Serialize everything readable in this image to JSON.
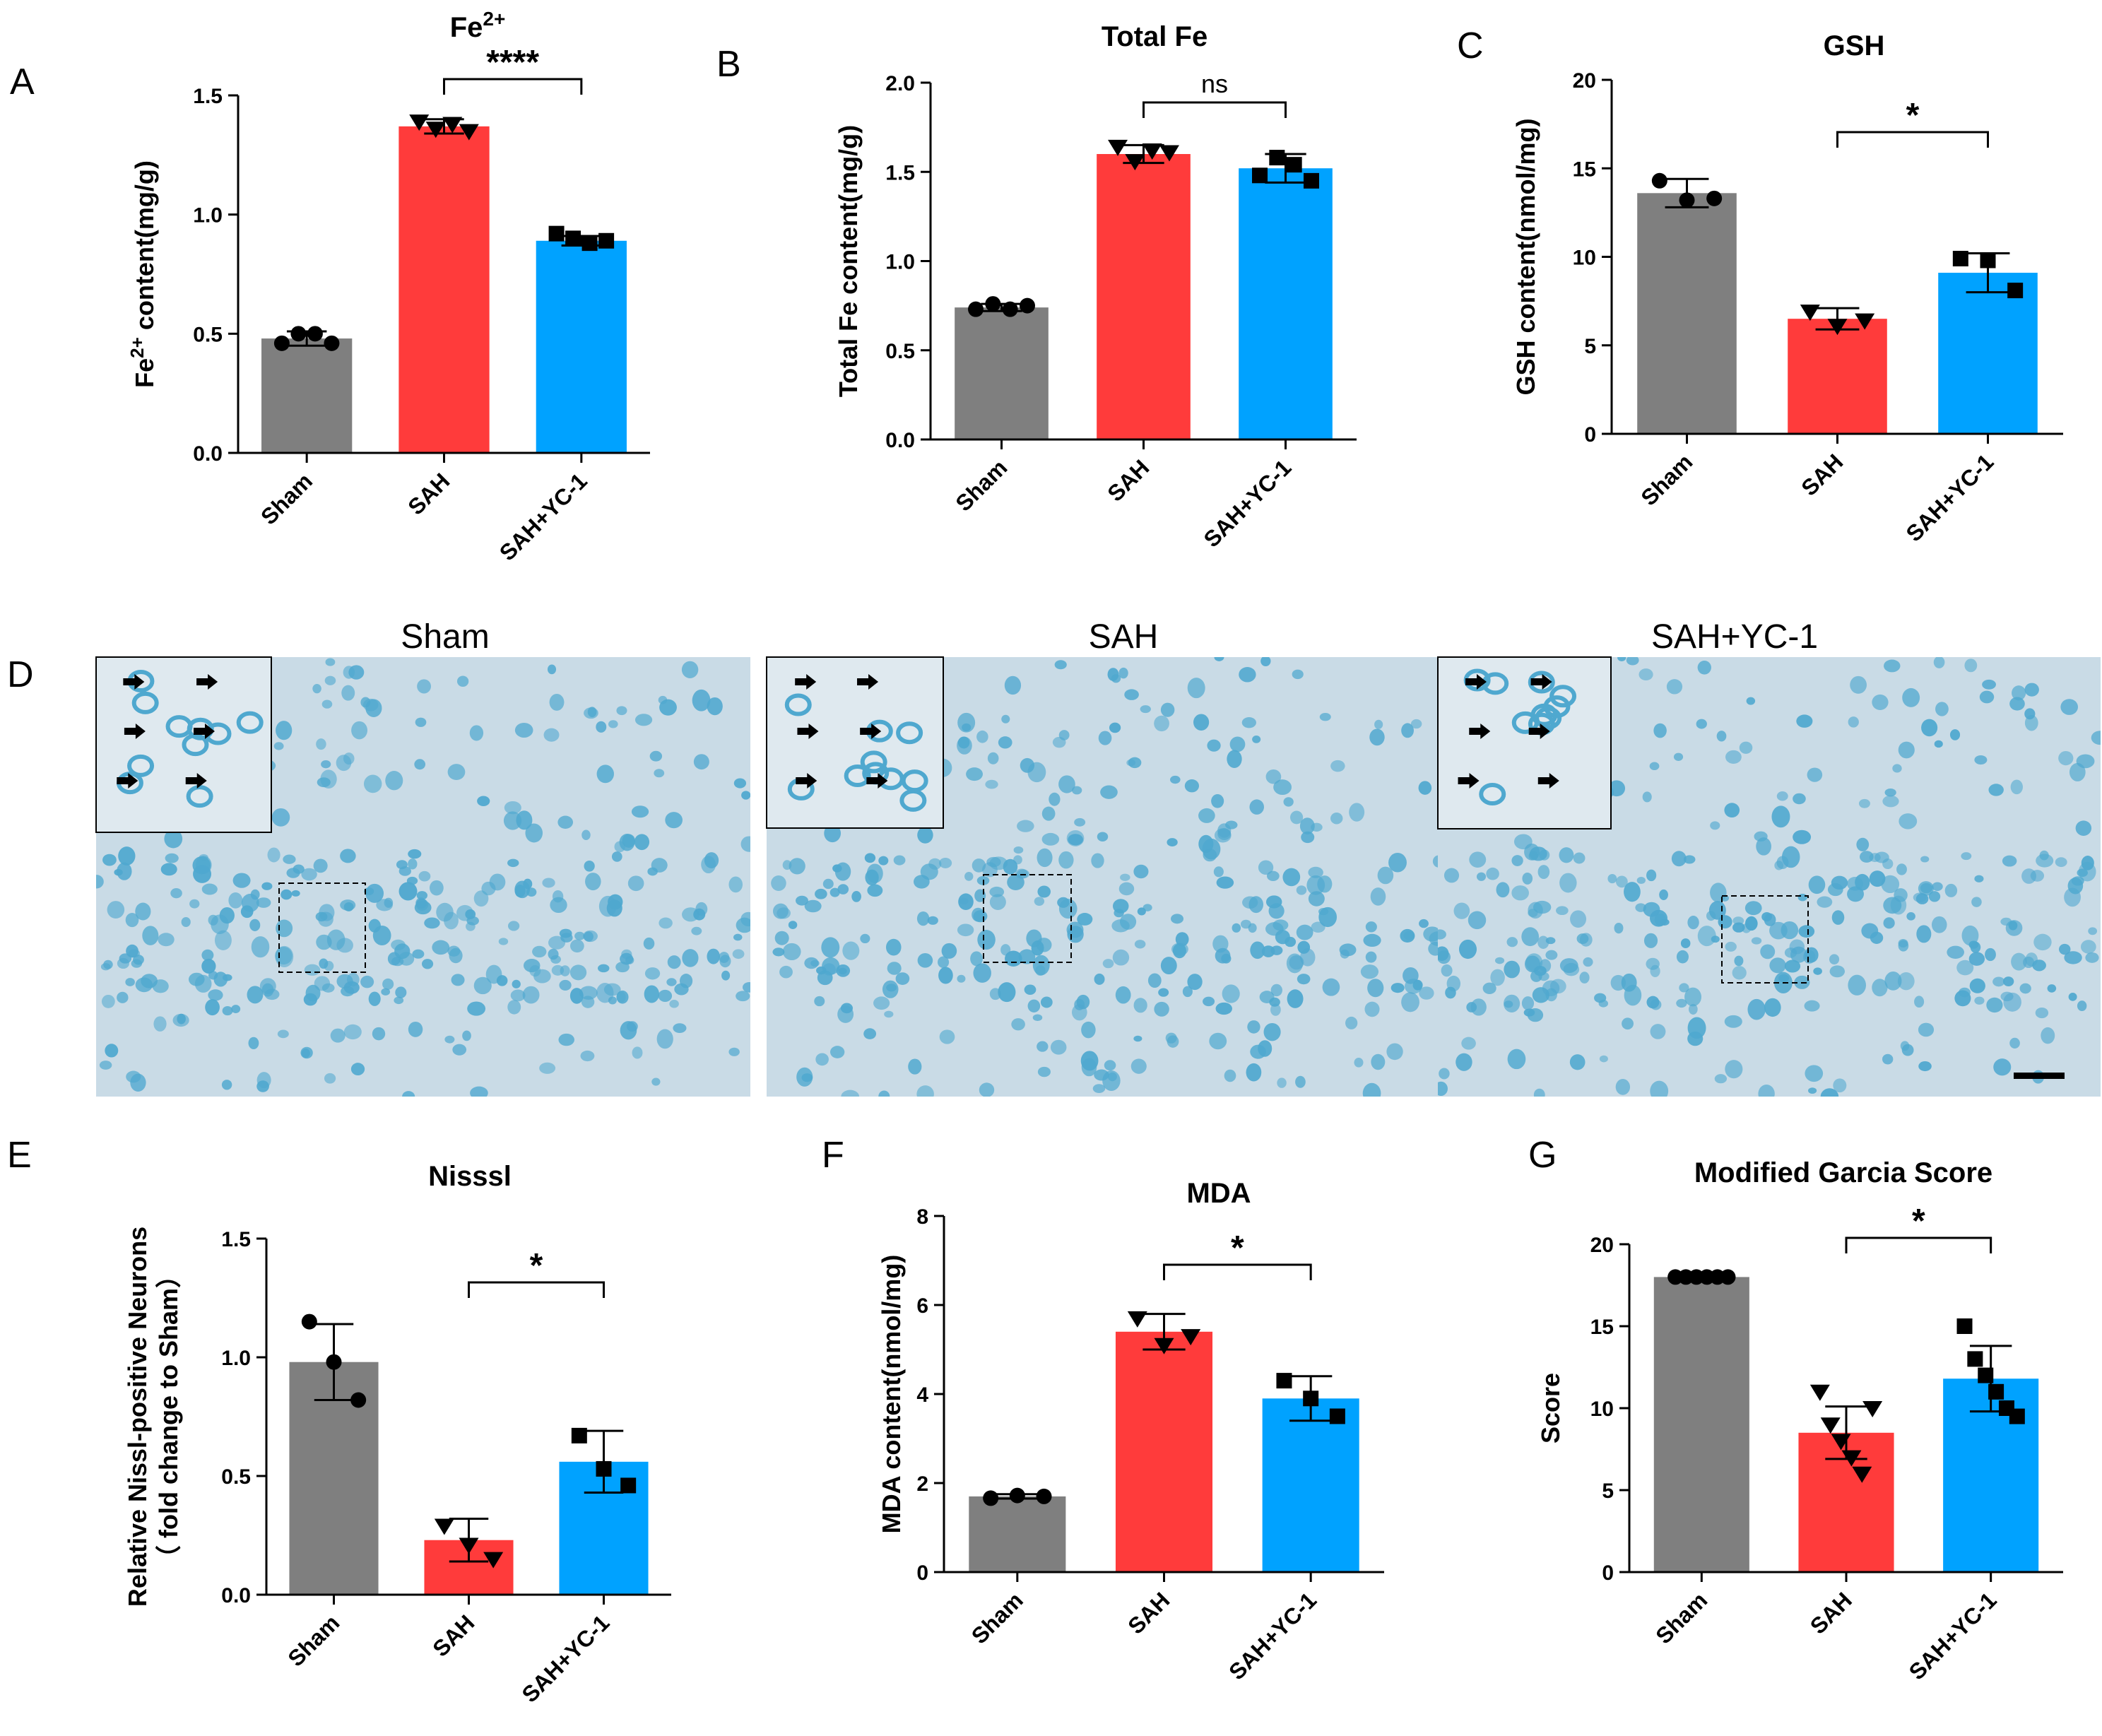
{
  "figure": {
    "panel_labels": [
      "A",
      "B",
      "C",
      "D",
      "E",
      "F",
      "G"
    ],
    "micrographs": {
      "titles": [
        "Sham",
        "SAH",
        "SAH+YC-1"
      ],
      "stain_color": "#4fa8cf",
      "background_color": "#c9dbe6"
    },
    "colors": {
      "Sham": "#7f7f7f",
      "SAH": "#ff3b3b",
      "SAH+YC-1": "#00a2ff"
    }
  },
  "chart_data": [
    {
      "id": "A",
      "type": "bar",
      "title": "Fe2+",
      "title_main": "Fe",
      "title_sup": "2+",
      "ylabel": "Fe2+ content(mg/g)",
      "ylabel_pre": "Fe",
      "ylabel_sup": "2+",
      "ylabel_post": " content(mg/g)",
      "categories": [
        "Sham",
        "SAH",
        "SAH+YC-1"
      ],
      "values": [
        0.48,
        1.37,
        0.89
      ],
      "sd": [
        0.03,
        0.03,
        0.02
      ],
      "points": [
        [
          0.46,
          0.5,
          0.5,
          0.46
        ],
        [
          1.39,
          1.36,
          1.38,
          1.35
        ],
        [
          0.92,
          0.9,
          0.88,
          0.89
        ]
      ],
      "markers": [
        "circle",
        "triangle",
        "square"
      ],
      "ylim": [
        0,
        1.5
      ],
      "yticks": [
        "0.0",
        "0.5",
        "1.0",
        "1.5"
      ],
      "significance": {
        "from": "SAH",
        "to": "SAH+YC-1",
        "label": "****"
      }
    },
    {
      "id": "B",
      "type": "bar",
      "title": "Total Fe",
      "ylabel": "Total Fe content(mg/g)",
      "categories": [
        "Sham",
        "SAH",
        "SAH+YC-1"
      ],
      "values": [
        0.74,
        1.6,
        1.52
      ],
      "sd": [
        0.02,
        0.05,
        0.08
      ],
      "points": [
        [
          0.73,
          0.76,
          0.73,
          0.75
        ],
        [
          1.64,
          1.56,
          1.62,
          1.61
        ],
        [
          1.48,
          1.58,
          1.54,
          1.45
        ]
      ],
      "markers": [
        "circle",
        "triangle",
        "square"
      ],
      "ylim": [
        0,
        2.0
      ],
      "yticks": [
        "0.0",
        "0.5",
        "1.0",
        "1.5",
        "2.0"
      ],
      "significance": {
        "from": "SAH",
        "to": "SAH+YC-1",
        "label": "ns"
      }
    },
    {
      "id": "C",
      "type": "bar",
      "title": "GSH",
      "ylabel": "GSH content(nmol/mg)",
      "categories": [
        "Sham",
        "SAH",
        "SAH+YC-1"
      ],
      "values": [
        13.6,
        6.5,
        9.1
      ],
      "sd": [
        0.8,
        0.6,
        1.1
      ],
      "points": [
        [
          14.3,
          13.2,
          13.3
        ],
        [
          6.9,
          6.1,
          6.4
        ],
        [
          9.9,
          9.8,
          8.1
        ]
      ],
      "markers": [
        "circle",
        "triangle",
        "square"
      ],
      "ylim": [
        0,
        20
      ],
      "yticks": [
        "0",
        "5",
        "10",
        "15",
        "20"
      ],
      "significance": {
        "from": "SAH",
        "to": "SAH+YC-1",
        "label": "*"
      }
    },
    {
      "id": "E",
      "type": "bar",
      "title": "Nisssl",
      "ylabel_lines": [
        "Relative Nissl-positive Neurons",
        "（ fold change to Sham）"
      ],
      "categories": [
        "Sham",
        "SAH",
        "SAH+YC-1"
      ],
      "values": [
        0.98,
        0.23,
        0.56
      ],
      "sd": [
        0.16,
        0.09,
        0.13
      ],
      "points": [
        [
          1.15,
          0.98,
          0.82
        ],
        [
          0.29,
          0.21,
          0.15
        ],
        [
          0.67,
          0.53,
          0.46
        ]
      ],
      "markers": [
        "circle",
        "triangle",
        "square"
      ],
      "ylim": [
        0,
        1.5
      ],
      "yticks": [
        "0.0",
        "0.5",
        "1.0",
        "1.5"
      ],
      "significance": {
        "from": "SAH",
        "to": "SAH+YC-1",
        "label": "*"
      }
    },
    {
      "id": "F",
      "type": "bar",
      "title": "MDA",
      "ylabel": "MDA content(nmol/mg)",
      "categories": [
        "Sham",
        "SAH",
        "SAH+YC-1"
      ],
      "values": [
        1.7,
        5.4,
        3.9
      ],
      "sd": [
        0.05,
        0.4,
        0.5
      ],
      "points": [
        [
          1.66,
          1.72,
          1.7
        ],
        [
          5.7,
          5.1,
          5.3
        ],
        [
          4.3,
          3.9,
          3.5
        ]
      ],
      "markers": [
        "circle",
        "triangle",
        "square"
      ],
      "ylim": [
        0,
        8
      ],
      "yticks": [
        "0",
        "2",
        "4",
        "6",
        "8"
      ],
      "significance": {
        "from": "SAH",
        "to": "SAH+YC-1",
        "label": "*"
      }
    },
    {
      "id": "G",
      "type": "bar",
      "title": "Modified Garcia Score",
      "ylabel": "Score",
      "categories": [
        "Sham",
        "SAH",
        "SAH+YC-1"
      ],
      "values": [
        18.0,
        8.5,
        11.8
      ],
      "sd": [
        0.0,
        1.6,
        2.0
      ],
      "points": [
        [
          18,
          18,
          18,
          18,
          18,
          18
        ],
        [
          11,
          9,
          8,
          7,
          6,
          10
        ],
        [
          15,
          13,
          12,
          11,
          10,
          9.5
        ]
      ],
      "markers": [
        "circle",
        "triangle",
        "square"
      ],
      "ylim": [
        0,
        20
      ],
      "yticks": [
        "0",
        "5",
        "10",
        "15",
        "20"
      ],
      "significance": {
        "from": "SAH",
        "to": "SAH+YC-1",
        "label": "*"
      }
    }
  ]
}
